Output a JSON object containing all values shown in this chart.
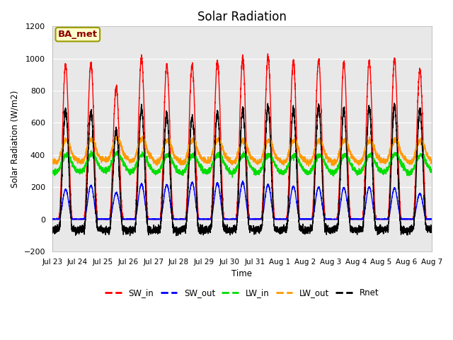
{
  "title": "Solar Radiation",
  "ylabel": "Solar Radiation (W/m2)",
  "xlabel": "Time",
  "ylim": [
    -200,
    1200
  ],
  "yticks": [
    -200,
    0,
    200,
    400,
    600,
    800,
    1000,
    1200
  ],
  "site_label": "BA_met",
  "colors": {
    "SW_in": "#ff0000",
    "SW_out": "#0000ff",
    "LW_in": "#00dd00",
    "LW_out": "#ff9900",
    "Rnet": "#000000"
  },
  "legend_labels": [
    "SW_in",
    "SW_out",
    "LW_in",
    "LW_out",
    "Rnet"
  ],
  "n_days": 15,
  "points_per_day": 288,
  "plot_bg": "#e8e8e8",
  "grid_color": "#ffffff",
  "sw_in_peaks": [
    960,
    970,
    820,
    1010,
    960,
    960,
    980,
    1000,
    1010,
    980,
    990,
    970,
    980,
    990,
    930
  ],
  "sw_out_peaks": [
    185,
    210,
    165,
    220,
    215,
    230,
    225,
    230,
    215,
    205,
    200,
    195,
    200,
    195,
    160
  ],
  "lw_in_base": [
    330,
    335,
    340,
    335,
    330,
    330,
    335,
    330,
    330,
    330,
    330,
    330,
    330,
    335,
    330
  ],
  "lw_out_base": [
    385,
    390,
    400,
    395,
    385,
    385,
    390,
    385,
    385,
    385,
    385,
    385,
    385,
    390,
    385
  ]
}
